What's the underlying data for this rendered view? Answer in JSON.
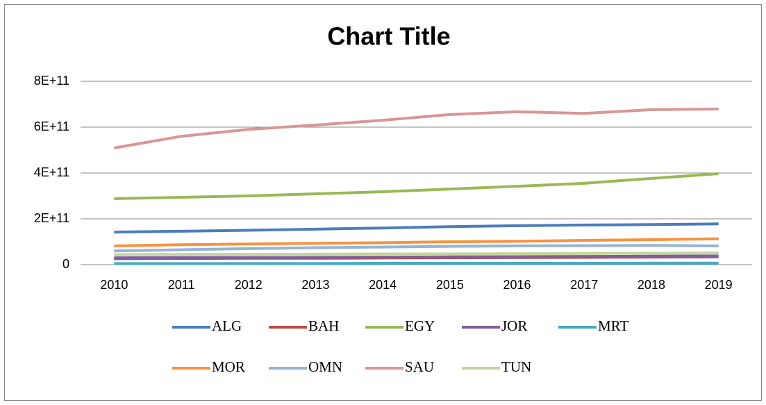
{
  "chart_data": {
    "type": "line",
    "title": "Chart Title",
    "x": [
      2010,
      2011,
      2012,
      2013,
      2014,
      2015,
      2016,
      2017,
      2018,
      2019
    ],
    "ylim": [
      0,
      800000000000.0
    ],
    "yticks": [
      0,
      {
        "value": 200000000000.0,
        "label": "2E+11"
      },
      {
        "value": 400000000000.0,
        "label": "4E+11"
      },
      {
        "value": 600000000000.0,
        "label": "6E+11"
      },
      {
        "value": 800000000000.0,
        "label": "8E+11"
      }
    ],
    "grid": true,
    "legend": "bottom",
    "series": [
      {
        "name": "ALG",
        "color": "#4a7ebb",
        "values": [
          142000000000.0,
          146000000000.0,
          150000000000.0,
          155000000000.0,
          160000000000.0,
          166000000000.0,
          170000000000.0,
          173000000000.0,
          175000000000.0,
          178000000000.0
        ]
      },
      {
        "name": "BAH",
        "color": "#be4b48",
        "values": [
          26000000000.0,
          27000000000.0,
          28000000000.0,
          28000000000.0,
          29000000000.0,
          30000000000.0,
          31000000000.0,
          32000000000.0,
          33000000000.0,
          34000000000.0
        ]
      },
      {
        "name": "EGY",
        "color": "#98b954",
        "values": [
          288000000000.0,
          294000000000.0,
          300000000000.0,
          309000000000.0,
          318000000000.0,
          330000000000.0,
          342000000000.0,
          355000000000.0,
          376000000000.0,
          397000000000.0
        ]
      },
      {
        "name": "JOR",
        "color": "#7d5fa0",
        "values": [
          30000000000.0,
          31000000000.0,
          31000000000.0,
          32000000000.0,
          33000000000.0,
          34000000000.0,
          35000000000.0,
          36000000000.0,
          37000000000.0,
          38000000000.0
        ]
      },
      {
        "name": "MRT",
        "color": "#46aac5",
        "values": [
          5000000000.0,
          5000000000.0,
          5000000000.0,
          5000000000.0,
          6000000000.0,
          6000000000.0,
          6000000000.0,
          6000000000.0,
          7000000000.0,
          7000000000.0
        ]
      },
      {
        "name": "MOR",
        "color": "#f69240",
        "values": [
          82000000000.0,
          87000000000.0,
          90000000000.0,
          93000000000.0,
          96000000000.0,
          100000000000.0,
          102000000000.0,
          106000000000.0,
          109000000000.0,
          113000000000.0
        ]
      },
      {
        "name": "OMN",
        "color": "#95b3d7",
        "values": [
          60000000000.0,
          65000000000.0,
          70000000000.0,
          74000000000.0,
          77000000000.0,
          80000000000.0,
          82000000000.0,
          83000000000.0,
          84000000000.0,
          82000000000.0
        ]
      },
      {
        "name": "SAU",
        "color": "#d99694",
        "values": [
          509000000000.0,
          560000000000.0,
          590000000000.0,
          609000000000.0,
          630000000000.0,
          655000000000.0,
          667000000000.0,
          660000000000.0,
          676000000000.0,
          679000000000.0
        ]
      },
      {
        "name": "TUN",
        "color": "#c3d69b",
        "values": [
          44000000000.0,
          45000000000.0,
          45000000000.0,
          46000000000.0,
          47000000000.0,
          47000000000.0,
          48000000000.0,
          49000000000.0,
          50000000000.0,
          51000000000.0
        ]
      }
    ]
  }
}
